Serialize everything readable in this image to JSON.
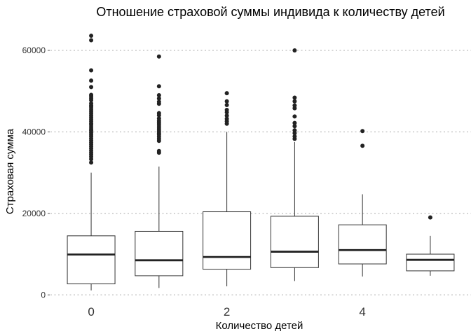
{
  "chart_data": {
    "type": "boxplot",
    "title": "Отношение страховой суммы индивида к количеству детей",
    "xlabel": "Количество детей",
    "ylabel": "Страховая сумма",
    "x_ticks": [
      "0",
      "2",
      "4"
    ],
    "y_ticks": [
      "0",
      "20000",
      "40000",
      "60000"
    ],
    "xlim": [
      -0.6,
      5.6
    ],
    "ylim": [
      -1500,
      65500
    ],
    "grid": "horizontal dotted",
    "legend": "none",
    "colors": {
      "box_stroke": "#333333",
      "median": "#222222",
      "outlier": "#222222",
      "grid": "#c8c8c8"
    },
    "boxes": [
      {
        "x": 0,
        "min": 1100,
        "q1": 2700,
        "median": 9900,
        "q3": 14500,
        "max": 30000,
        "outliers": [
          32500,
          33300,
          33900,
          34400,
          34900,
          35400,
          35900,
          36400,
          36900,
          37400,
          37900,
          38400,
          38900,
          39300,
          39800,
          40300,
          40700,
          41200,
          41700,
          42100,
          42600,
          43100,
          43600,
          44100,
          44600,
          45100,
          45600,
          46100,
          46500,
          47000,
          47800,
          48300,
          48800,
          49100,
          51000,
          52600,
          55100,
          62500,
          63600
        ]
      },
      {
        "x": 1,
        "min": 1700,
        "q1": 4700,
        "median": 8500,
        "q3": 15600,
        "max": 31500,
        "outliers": [
          34900,
          35300,
          37800,
          38300,
          38800,
          39300,
          39700,
          40200,
          40700,
          41200,
          41700,
          42200,
          42700,
          43300,
          44100,
          44600,
          46900,
          47400,
          48200,
          49000,
          51200,
          58500
        ]
      },
      {
        "x": 2,
        "min": 2100,
        "q1": 6300,
        "median": 9300,
        "q3": 20400,
        "max": 40000,
        "outliers": [
          42000,
          42600,
          43200,
          44000,
          44800,
          45400,
          46600,
          47500,
          49500
        ]
      },
      {
        "x": 3,
        "min": 3400,
        "q1": 6700,
        "median": 10600,
        "q3": 19300,
        "max": 37500,
        "outliers": [
          38300,
          38900,
          39700,
          40400,
          41400,
          42200,
          43800,
          45800,
          46500,
          47500,
          48400,
          60000
        ]
      },
      {
        "x": 4,
        "min": 4500,
        "q1": 7600,
        "median": 11000,
        "q3": 17200,
        "max": 24700,
        "outliers": [
          36600,
          40200
        ]
      },
      {
        "x": 5,
        "min": 4700,
        "q1": 5900,
        "median": 8600,
        "q3": 10000,
        "max": 14500,
        "outliers": [
          19000
        ]
      }
    ]
  }
}
